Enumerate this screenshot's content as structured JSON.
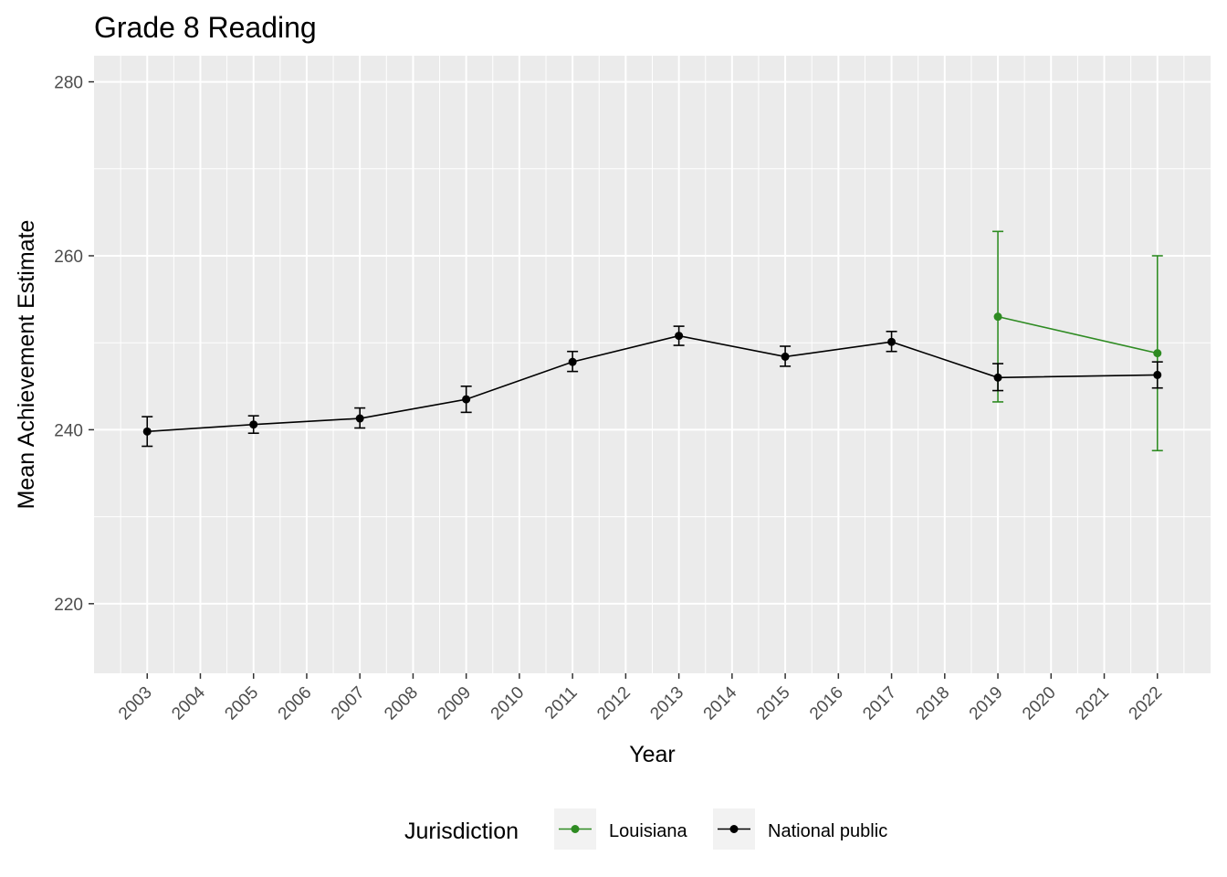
{
  "chart_data": {
    "type": "line",
    "title": "Grade 8 Reading",
    "xlabel": "Year",
    "ylabel": "Mean Achievement Estimate",
    "x_ticks": [
      "2003",
      "2004",
      "2005",
      "2006",
      "2007",
      "2008",
      "2009",
      "2010",
      "2011",
      "2012",
      "2013",
      "2014",
      "2015",
      "2016",
      "2017",
      "2018",
      "2019",
      "2020",
      "2021",
      "2022"
    ],
    "y_ticks": [
      220,
      240,
      260,
      280
    ],
    "xlim": [
      2002,
      2023
    ],
    "ylim": [
      212,
      283
    ],
    "grid": true,
    "legend_title": "Jurisdiction",
    "legend_position": "bottom",
    "series": [
      {
        "name": "Louisiana",
        "color": "#2e8b22",
        "points": [
          {
            "x": 2019,
            "y": 253.0,
            "low": 243.2,
            "high": 262.8
          },
          {
            "x": 2022,
            "y": 248.8,
            "low": 237.6,
            "high": 260.0
          }
        ]
      },
      {
        "name": "National public",
        "color": "#000000",
        "points": [
          {
            "x": 2003,
            "y": 239.8,
            "low": 238.1,
            "high": 241.5
          },
          {
            "x": 2005,
            "y": 240.6,
            "low": 239.6,
            "high": 241.6
          },
          {
            "x": 2007,
            "y": 241.3,
            "low": 240.2,
            "high": 242.5
          },
          {
            "x": 2009,
            "y": 243.5,
            "low": 242.0,
            "high": 245.0
          },
          {
            "x": 2011,
            "y": 247.8,
            "low": 246.7,
            "high": 249.0
          },
          {
            "x": 2013,
            "y": 250.8,
            "low": 249.7,
            "high": 251.9
          },
          {
            "x": 2015,
            "y": 248.4,
            "low": 247.3,
            "high": 249.6
          },
          {
            "x": 2017,
            "y": 250.1,
            "low": 249.0,
            "high": 251.3
          },
          {
            "x": 2019,
            "y": 246.0,
            "low": 244.5,
            "high": 247.6
          },
          {
            "x": 2022,
            "y": 246.3,
            "low": 244.8,
            "high": 247.8
          }
        ]
      }
    ]
  }
}
